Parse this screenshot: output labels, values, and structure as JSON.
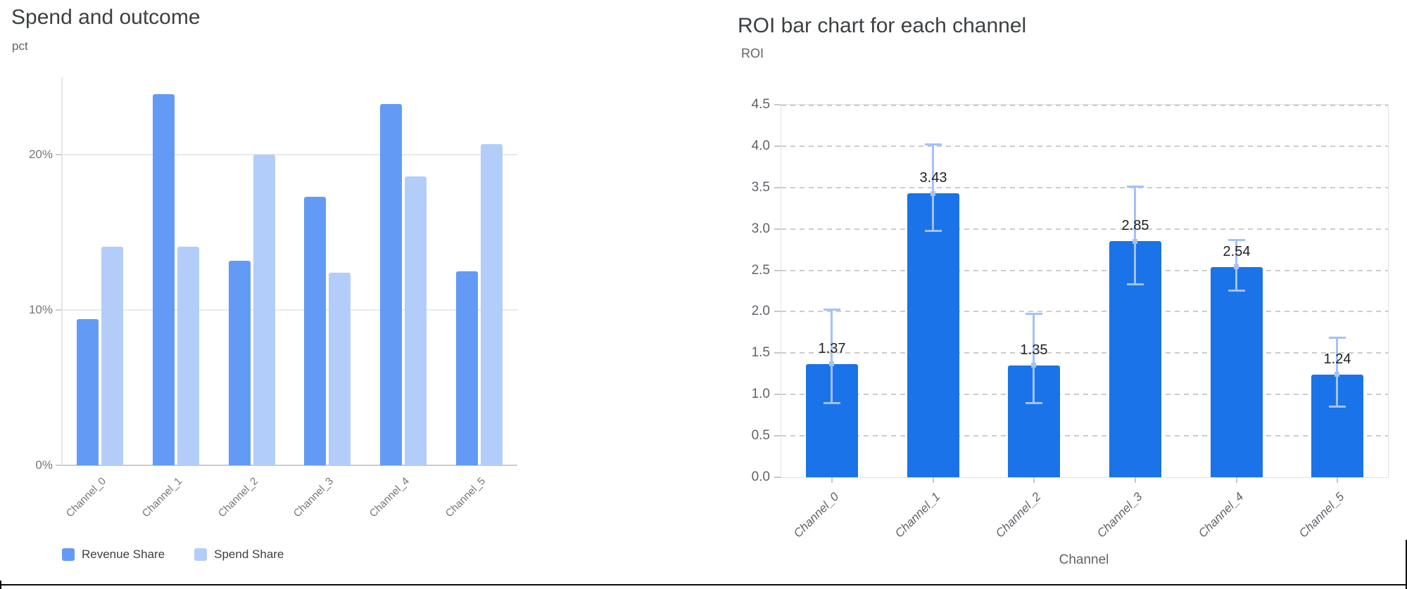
{
  "page": {
    "background": "#ffffff",
    "frame_color": "#0b0b0b"
  },
  "chart_data": [
    {
      "id": "spend-and-outcome",
      "type": "bar",
      "title": "Spend and outcome",
      "ylabel": "pct",
      "xlabel": "",
      "categories": [
        "Channel_0",
        "Channel_1",
        "Channel_2",
        "Channel_3",
        "Channel_4",
        "Channel_5"
      ],
      "series": [
        {
          "name": "Revenue Share",
          "color": "#639af6",
          "values": [
            9.4,
            23.9,
            13.2,
            17.3,
            23.3,
            12.5
          ]
        },
        {
          "name": "Spend Share",
          "color": "#b3cdfa",
          "values": [
            14.1,
            14.1,
            20.0,
            12.4,
            18.6,
            20.7
          ]
        }
      ],
      "value_unit": "%",
      "ylim": [
        0,
        25
      ],
      "y_ticks": [
        {
          "value": 0,
          "label": "0%"
        },
        {
          "value": 10,
          "label": "10%"
        },
        {
          "value": 20,
          "label": "20%"
        }
      ],
      "grid": "horizontal-solid",
      "legend_position": "bottom-left"
    },
    {
      "id": "roi-by-channel",
      "type": "bar",
      "title": "ROI bar chart for each channel",
      "ylabel": "ROI",
      "xlabel": "Channel",
      "categories": [
        "Channel_0",
        "Channel_1",
        "Channel_2",
        "Channel_3",
        "Channel_4",
        "Channel_5"
      ],
      "values": [
        1.37,
        3.43,
        1.35,
        2.85,
        2.54,
        1.24
      ],
      "bar_labels": [
        "1.37",
        "3.43",
        "1.35",
        "2.85",
        "2.54",
        "1.24"
      ],
      "error_bars": [
        {
          "low": 0.88,
          "high": 2.04
        },
        {
          "low": 2.96,
          "high": 4.03
        },
        {
          "low": 0.88,
          "high": 1.99
        },
        {
          "low": 2.32,
          "high": 3.52
        },
        {
          "low": 2.24,
          "high": 2.88
        },
        {
          "low": 0.84,
          "high": 1.7
        }
      ],
      "bar_color": "#1a73e8",
      "error_color": "#a3c2fa",
      "ylim": [
        0,
        4.5
      ],
      "y_ticks": [
        {
          "value": 0,
          "label": "0.0"
        },
        {
          "value": 0.5,
          "label": "0.5"
        },
        {
          "value": 1,
          "label": "1.0"
        },
        {
          "value": 1.5,
          "label": "1.5"
        },
        {
          "value": 2,
          "label": "2.0"
        },
        {
          "value": 2.5,
          "label": "2.5"
        },
        {
          "value": 3,
          "label": "3.0"
        },
        {
          "value": 3.5,
          "label": "3.5"
        },
        {
          "value": 4,
          "label": "4.0"
        },
        {
          "value": 4.5,
          "label": "4.5"
        }
      ],
      "grid": "horizontal-dashed",
      "legend_position": "none"
    }
  ]
}
